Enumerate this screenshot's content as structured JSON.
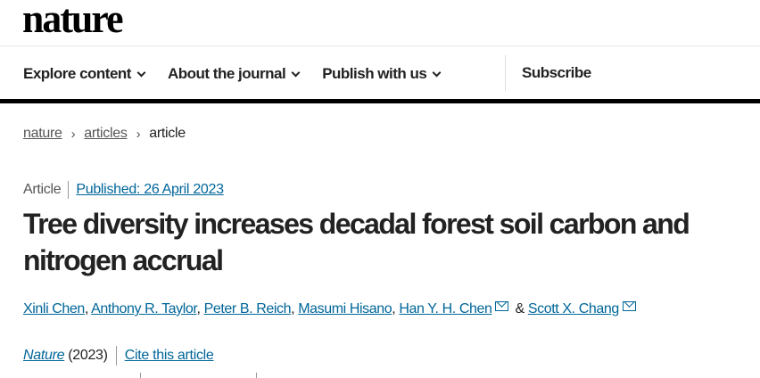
{
  "header": {
    "logo": "nature"
  },
  "nav": {
    "items": [
      {
        "label": "Explore content"
      },
      {
        "label": "About the journal"
      },
      {
        "label": "Publish with us"
      }
    ],
    "subscribe": "Subscribe"
  },
  "breadcrumb": {
    "items": [
      "nature",
      "articles",
      "article"
    ],
    "separator": "›"
  },
  "article": {
    "type": "Article",
    "published": "Published: 26 April 2023",
    "title": "Tree diversity increases decadal forest soil carbon and nitrogen accrual",
    "authors": [
      "Xinli Chen",
      "Anthony R. Taylor",
      "Peter B. Reich",
      "Masumi Hisano",
      "Han Y. H. Chen",
      "Scott X. Chang"
    ],
    "separator_comma": ", ",
    "ampersand": " & ",
    "journal": "Nature",
    "year": "(2023)",
    "cite": "Cite this article"
  },
  "colors": {
    "link": "#006699",
    "text": "#222222"
  }
}
